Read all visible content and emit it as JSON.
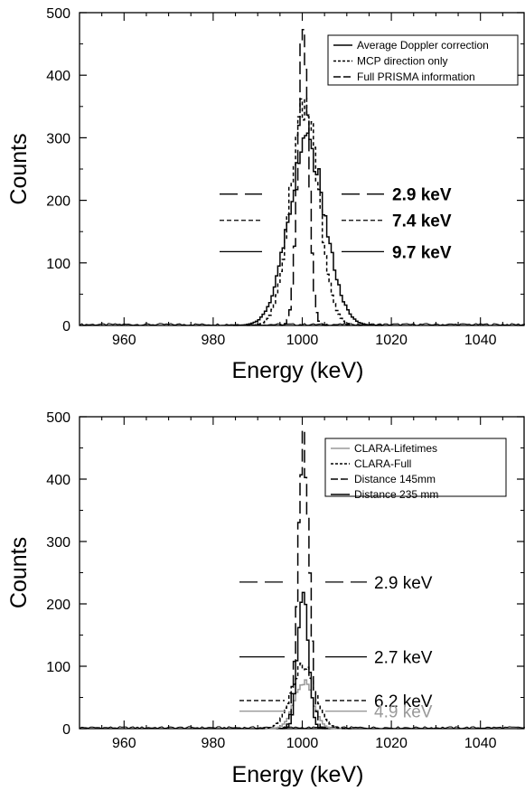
{
  "chart_data": [
    {
      "type": "line",
      "xlabel": "Energy (keV)",
      "ylabel": "Counts",
      "xlim": [
        950,
        1050
      ],
      "ylim": [
        0,
        500
      ],
      "xticks": [
        960,
        980,
        1000,
        1020,
        1040
      ],
      "yticks": [
        0,
        100,
        200,
        300,
        400,
        500
      ],
      "legend_position": "top-right",
      "series": [
        {
          "name": "Average Doppler correction",
          "style": "solid",
          "color": "#000000",
          "center": 1001.0,
          "fwhm": 9.7,
          "peak": 290
        },
        {
          "name": "MCP direction only",
          "style": "dotted",
          "color": "#000000",
          "center": 1000.5,
          "fwhm": 7.4,
          "peak": 355
        },
        {
          "name": "Full PRISMA information",
          "style": "dashed",
          "color": "#000000",
          "center": 1000.2,
          "fwhm": 2.9,
          "peak": 462
        }
      ],
      "annotations": [
        {
          "text": "2.9 keV",
          "y": 210,
          "style": "dashed",
          "bold": true,
          "color": "#000000"
        },
        {
          "text": "7.4 keV",
          "y": 168,
          "style": "dotted",
          "bold": true,
          "color": "#000000"
        },
        {
          "text": "9.7 keV",
          "y": 118,
          "style": "solid",
          "bold": true,
          "color": "#000000"
        }
      ]
    },
    {
      "type": "line",
      "xlabel": "Energy (keV)",
      "ylabel": "Counts",
      "xlim": [
        950,
        1050
      ],
      "ylim": [
        0,
        500
      ],
      "xticks": [
        960,
        980,
        1000,
        1020,
        1040
      ],
      "yticks": [
        0,
        100,
        200,
        300,
        400,
        500
      ],
      "legend_position": "top-right",
      "series": [
        {
          "name": "CLARA-Lifetimes",
          "style": "solid",
          "color": "#999999",
          "center": 1000.3,
          "fwhm": 4.9,
          "peak": 75
        },
        {
          "name": "CLARA-Full",
          "style": "dotted",
          "color": "#000000",
          "center": 1000.2,
          "fwhm": 6.2,
          "peak": 100
        },
        {
          "name": "Distance 145mm",
          "style": "dashed",
          "color": "#000000",
          "center": 1000.3,
          "fwhm": 2.9,
          "peak": 462
        },
        {
          "name": "Distance 235 mm",
          "style": "solid",
          "color": "#000000",
          "center": 1000.2,
          "fwhm": 2.7,
          "peak": 228
        }
      ],
      "annotations": [
        {
          "text": "2.9 keV",
          "y": 235,
          "style": "dashed",
          "bold": false,
          "color": "#000000"
        },
        {
          "text": "2.7 keV",
          "y": 115,
          "style": "solid",
          "bold": false,
          "color": "#000000"
        },
        {
          "text": "6.2 keV",
          "y": 45,
          "style": "dotted",
          "bold": false,
          "color": "#000000"
        },
        {
          "text": "4.9 keV",
          "y": 28,
          "style": "solid",
          "bold": false,
          "color": "#999999"
        }
      ]
    }
  ]
}
